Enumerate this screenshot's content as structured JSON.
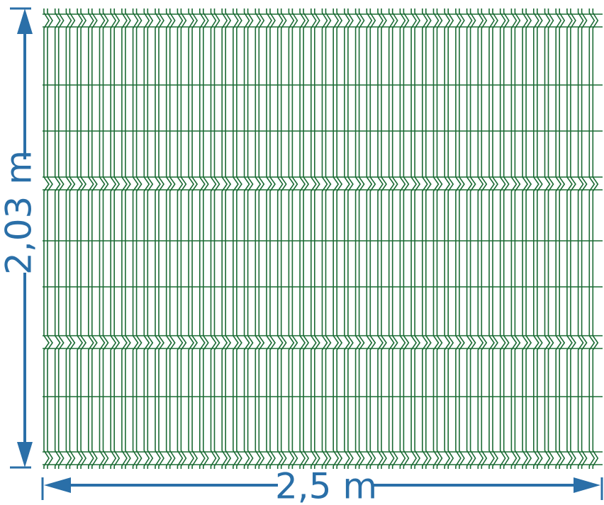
{
  "dimensions": {
    "height": "2,03 m",
    "width": "2,5 m"
  }
}
